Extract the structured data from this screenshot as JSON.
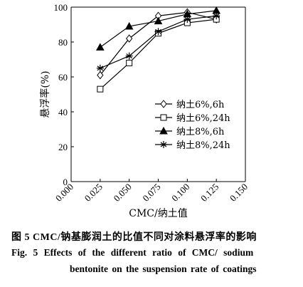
{
  "chart_data": {
    "type": "line",
    "xlabel": "CMC/纳土值",
    "ylabel": "悬浮率(%)",
    "xlim": [
      0.0,
      0.15
    ],
    "ylim": [
      0,
      100
    ],
    "x_ticks": [
      "0.000",
      "0.025",
      "0.050",
      "0.075",
      "0.100",
      "0.125",
      "0.150"
    ],
    "y_ticks": [
      "0",
      "20",
      "40",
      "60",
      "80",
      "100"
    ],
    "x": [
      0.025,
      0.05,
      0.075,
      0.1,
      0.125
    ],
    "legend_position": "center-right",
    "series": [
      {
        "name": "纳土6%,6h",
        "marker": "diamond-open",
        "values": [
          61,
          82,
          95,
          97,
          93
        ]
      },
      {
        "name": "纳土6%,24h",
        "marker": "square-open",
        "values": [
          53,
          68,
          85,
          91,
          93
        ]
      },
      {
        "name": "纳土8%,6h",
        "marker": "triangle-filled",
        "values": [
          77,
          89,
          92,
          96,
          98
        ]
      },
      {
        "name": "纳土8%,24h",
        "marker": "asterisk",
        "values": [
          65,
          72,
          86,
          93,
          95
        ]
      }
    ]
  },
  "caption": {
    "cn": "图 5   CMC/钠基膨润土的比值不同对涂料悬浮率的影响",
    "en_line1": "Fig. 5    Effects of the different ratio of CMC/ sodium",
    "en_line2": "bentonite on the suspension rate of coatings"
  }
}
